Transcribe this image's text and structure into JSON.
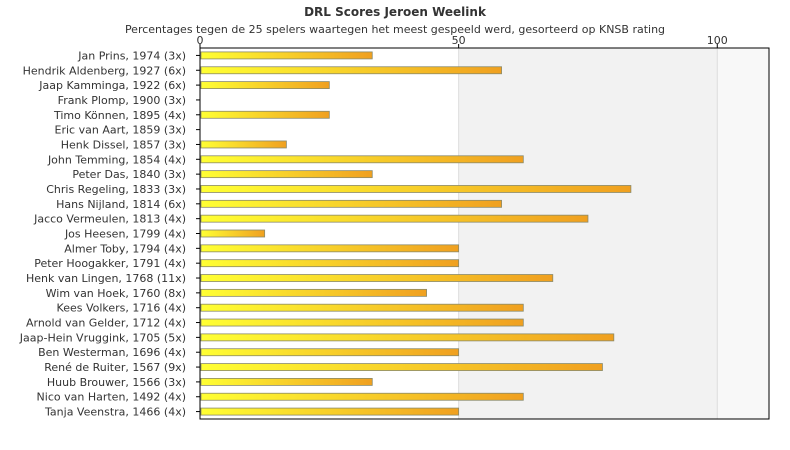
{
  "chart_data": {
    "type": "bar",
    "orientation": "horizontal",
    "title": "DRL Scores Jeroen Weelink",
    "subtitle": "Percentages tegen de 25 spelers waartegen het meest gespeeld werd, gesorteerd op KNSB rating",
    "xlim": [
      0,
      110
    ],
    "xticks": [
      "0",
      "50",
      "100"
    ],
    "xtick_values": [
      0,
      50,
      100
    ],
    "grid": "vertical",
    "categories": [
      "Jan Prins, 1974 (3x)",
      "Hendrik Aldenberg, 1927 (6x)",
      "Jaap Kamminga, 1922 (6x)",
      "Frank Plomp, 1900 (3x)",
      "Timo Können, 1895 (4x)",
      "Eric van Aart, 1859 (3x)",
      "Henk Dissel, 1857 (3x)",
      "John Temming, 1854 (4x)",
      "Peter Das, 1840 (3x)",
      "Chris Regeling, 1833 (3x)",
      "Hans Nijland, 1814 (6x)",
      "Jacco Vermeulen, 1813 (4x)",
      "Jos Heesen, 1799 (4x)",
      "Almer Toby, 1794 (4x)",
      "Peter Hoogakker, 1791 (4x)",
      "Henk van Lingen, 1768 (11x)",
      "Wim van Hoek, 1760 (8x)",
      "Kees Volkers, 1716 (4x)",
      "Arnold van Gelder, 1712 (4x)",
      "Jaap-Hein Vruggink, 1705 (5x)",
      "Ben Westerman, 1696 (4x)",
      "René de Ruiter, 1567 (9x)",
      "Huub Brouwer, 1566 (3x)",
      "Nico van Harten, 1492 (4x)",
      "Tanja Veenstra, 1466 (4x)"
    ],
    "values": [
      33.3,
      58.3,
      25,
      0,
      25,
      0,
      16.7,
      62.5,
      33.3,
      83.3,
      58.3,
      75,
      12.5,
      50,
      50,
      68.2,
      43.8,
      62.5,
      62.5,
      80,
      50,
      77.8,
      33.3,
      62.5,
      50
    ],
    "bar_colors": {
      "start": "#ffff33",
      "end": "#f0a020",
      "outline": "#8a8a6a"
    },
    "plot_colors": {
      "band": "#f2f2f2",
      "grid": "#dddddd",
      "axis": "#000000"
    }
  }
}
